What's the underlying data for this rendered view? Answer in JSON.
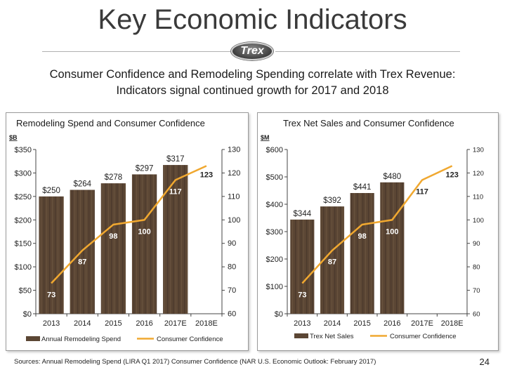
{
  "header": {
    "title": "Key Economic Indicators",
    "logo_text": "Trex",
    "subtitle_line1": "Consumer Confidence and Remodeling Spending correlate with Trex Revenue:",
    "subtitle_line2": "Indicators signal continued growth for 2017 and 2018"
  },
  "footer": {
    "sources": "Sources: Annual Remodeling Spend (LIRA Q1 2017) Consumer Confidence (NAR U.S. Economic Outlook:  February 2017)",
    "page_number": "24"
  },
  "colors": {
    "bar": "#5b4634",
    "line": "#f0a830",
    "confidence_label": "#ffffff"
  },
  "chart_data": [
    {
      "type": "bar",
      "title": "Remodeling Spend and Consumer Confidence",
      "unit_label": "$B",
      "categories": [
        "2013",
        "2014",
        "2015",
        "2016",
        "2017E",
        "2018E"
      ],
      "series": [
        {
          "name": "Annual Remodeling Spend",
          "axis": "left",
          "values": [
            250,
            264,
            278,
            297,
            317,
            null
          ],
          "labels": [
            "$250",
            "$264",
            "$278",
            "$297",
            "$317",
            ""
          ]
        },
        {
          "name": "Consumer Confidence",
          "type": "line",
          "axis": "right",
          "values": [
            73,
            87,
            98,
            100,
            117,
            123
          ],
          "labels": [
            "73",
            "87",
            "98",
            "100",
            "117",
            "123"
          ]
        }
      ],
      "y_left": {
        "range": [
          0,
          350
        ],
        "ticks": [
          0,
          50,
          100,
          150,
          200,
          250,
          300,
          350
        ],
        "tick_labels": [
          "$0",
          "$50",
          "$100",
          "$150",
          "$200",
          "$250",
          "$300",
          "$350"
        ]
      },
      "y_right": {
        "range": [
          60,
          130
        ],
        "ticks": [
          60,
          70,
          80,
          90,
          100,
          110,
          120,
          130
        ],
        "tick_labels": [
          "60",
          "70",
          "80",
          "90",
          "100",
          "110",
          "120",
          "130"
        ]
      },
      "legend": [
        "Annual Remodeling Spend",
        "Consumer Confidence"
      ],
      "legend_position": "bottom"
    },
    {
      "type": "bar",
      "title": "Trex Net Sales and Consumer Confidence",
      "unit_label": "$M",
      "categories": [
        "2013",
        "2014",
        "2015",
        "2016",
        "2017E",
        "2018E"
      ],
      "series": [
        {
          "name": "Trex Net Sales",
          "axis": "left",
          "values": [
            344,
            392,
            441,
            480,
            null,
            null
          ],
          "labels": [
            "$344",
            "$392",
            "$441",
            "$480",
            "",
            ""
          ]
        },
        {
          "name": "Consumer Confidence",
          "type": "line",
          "axis": "right",
          "values": [
            73,
            87,
            98,
            100,
            117,
            123
          ],
          "labels": [
            "73",
            "87",
            "98",
            "100",
            "117",
            "123"
          ]
        }
      ],
      "y_left": {
        "range": [
          0,
          600
        ],
        "ticks": [
          0,
          100,
          200,
          300,
          400,
          500,
          600
        ],
        "tick_labels": [
          "$0",
          "$100",
          "$200",
          "$300",
          "$400",
          "$500",
          "$600"
        ]
      },
      "y_right": {
        "range": [
          60,
          130
        ],
        "ticks": [
          60,
          70,
          80,
          90,
          100,
          110,
          120,
          130
        ],
        "tick_labels": [
          "60",
          "70",
          "80",
          "90",
          "100",
          "110",
          "120",
          "130"
        ]
      },
      "legend": [
        "Trex Net Sales",
        "Consumer Confidence"
      ],
      "legend_position": "bottom"
    }
  ]
}
